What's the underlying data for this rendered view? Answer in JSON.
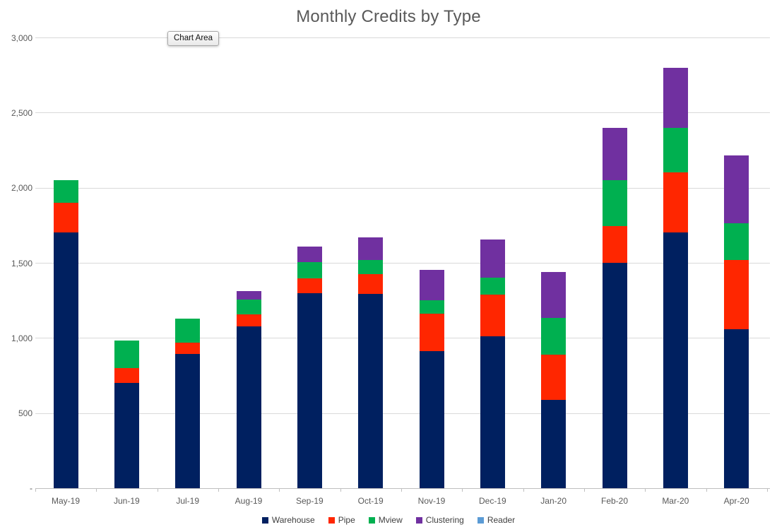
{
  "chart": {
    "title": "Monthly Credits by Type",
    "tooltip": "Chart Area"
  },
  "chart_data": {
    "type": "bar",
    "stacked": true,
    "title": "Monthly Credits by Type",
    "xlabel": "",
    "ylabel": "",
    "ylim": [
      0,
      3000
    ],
    "grid": true,
    "legend_position": "bottom",
    "categories": [
      "May-19",
      "Jun-19",
      "Jul-19",
      "Aug-19",
      "Sep-19",
      "Oct-19",
      "Nov-19",
      "Dec-19",
      "Jan-20",
      "Feb-20",
      "Mar-20",
      "Apr-20"
    ],
    "y_ticks": [
      0,
      500,
      1000,
      1500,
      2000,
      2500,
      3000
    ],
    "y_tick_labels": [
      "-",
      "500",
      "1,000",
      "1,500",
      "2,000",
      "2,500",
      "3,000"
    ],
    "series": [
      {
        "name": "Warehouse",
        "color": "#002060",
        "values": [
          1700,
          700,
          895,
          1075,
          1300,
          1295,
          910,
          1010,
          590,
          1500,
          1700,
          1060
        ]
      },
      {
        "name": "Pipe",
        "color": "#FF2600",
        "values": [
          200,
          100,
          75,
          80,
          95,
          130,
          250,
          280,
          300,
          245,
          400,
          460
        ]
      },
      {
        "name": "Mview",
        "color": "#00B050",
        "values": [
          150,
          185,
          160,
          100,
          110,
          95,
          90,
          110,
          245,
          305,
          300,
          245
        ]
      },
      {
        "name": "Clustering",
        "color": "#7030A0",
        "values": [
          0,
          0,
          0,
          55,
          105,
          150,
          205,
          255,
          305,
          350,
          400,
          450
        ]
      },
      {
        "name": "Reader",
        "color": "#5B9BD5",
        "values": [
          0,
          0,
          0,
          0,
          0,
          0,
          0,
          0,
          0,
          0,
          0,
          0
        ]
      }
    ]
  }
}
